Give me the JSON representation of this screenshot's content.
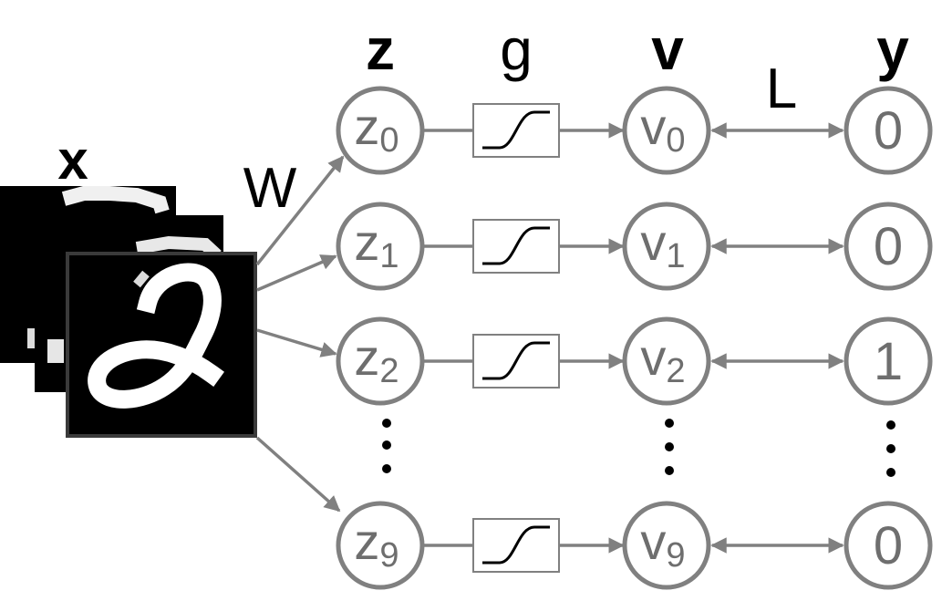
{
  "headers": {
    "x": "x",
    "z": "z",
    "g": "g",
    "v": "v",
    "y": "y"
  },
  "labels": {
    "weights": "W",
    "loss": "L"
  },
  "rows": [
    {
      "z": "z",
      "z_sub": "0",
      "v": "v",
      "v_sub": "0",
      "y": "0"
    },
    {
      "z": "z",
      "z_sub": "1",
      "v": "v",
      "v_sub": "1",
      "y": "0"
    },
    {
      "z": "z",
      "z_sub": "2",
      "v": "v",
      "v_sub": "2",
      "y": "1"
    },
    {
      "z": "z",
      "z_sub": "9",
      "v": "v",
      "v_sub": "9",
      "y": "0"
    }
  ],
  "colors": {
    "node_stroke": "#808080",
    "node_text": "#6e6e6e",
    "ink": "#000000"
  },
  "icons": {
    "activation": "sigmoid-curve-icon",
    "input": "mnist-digit-images"
  }
}
